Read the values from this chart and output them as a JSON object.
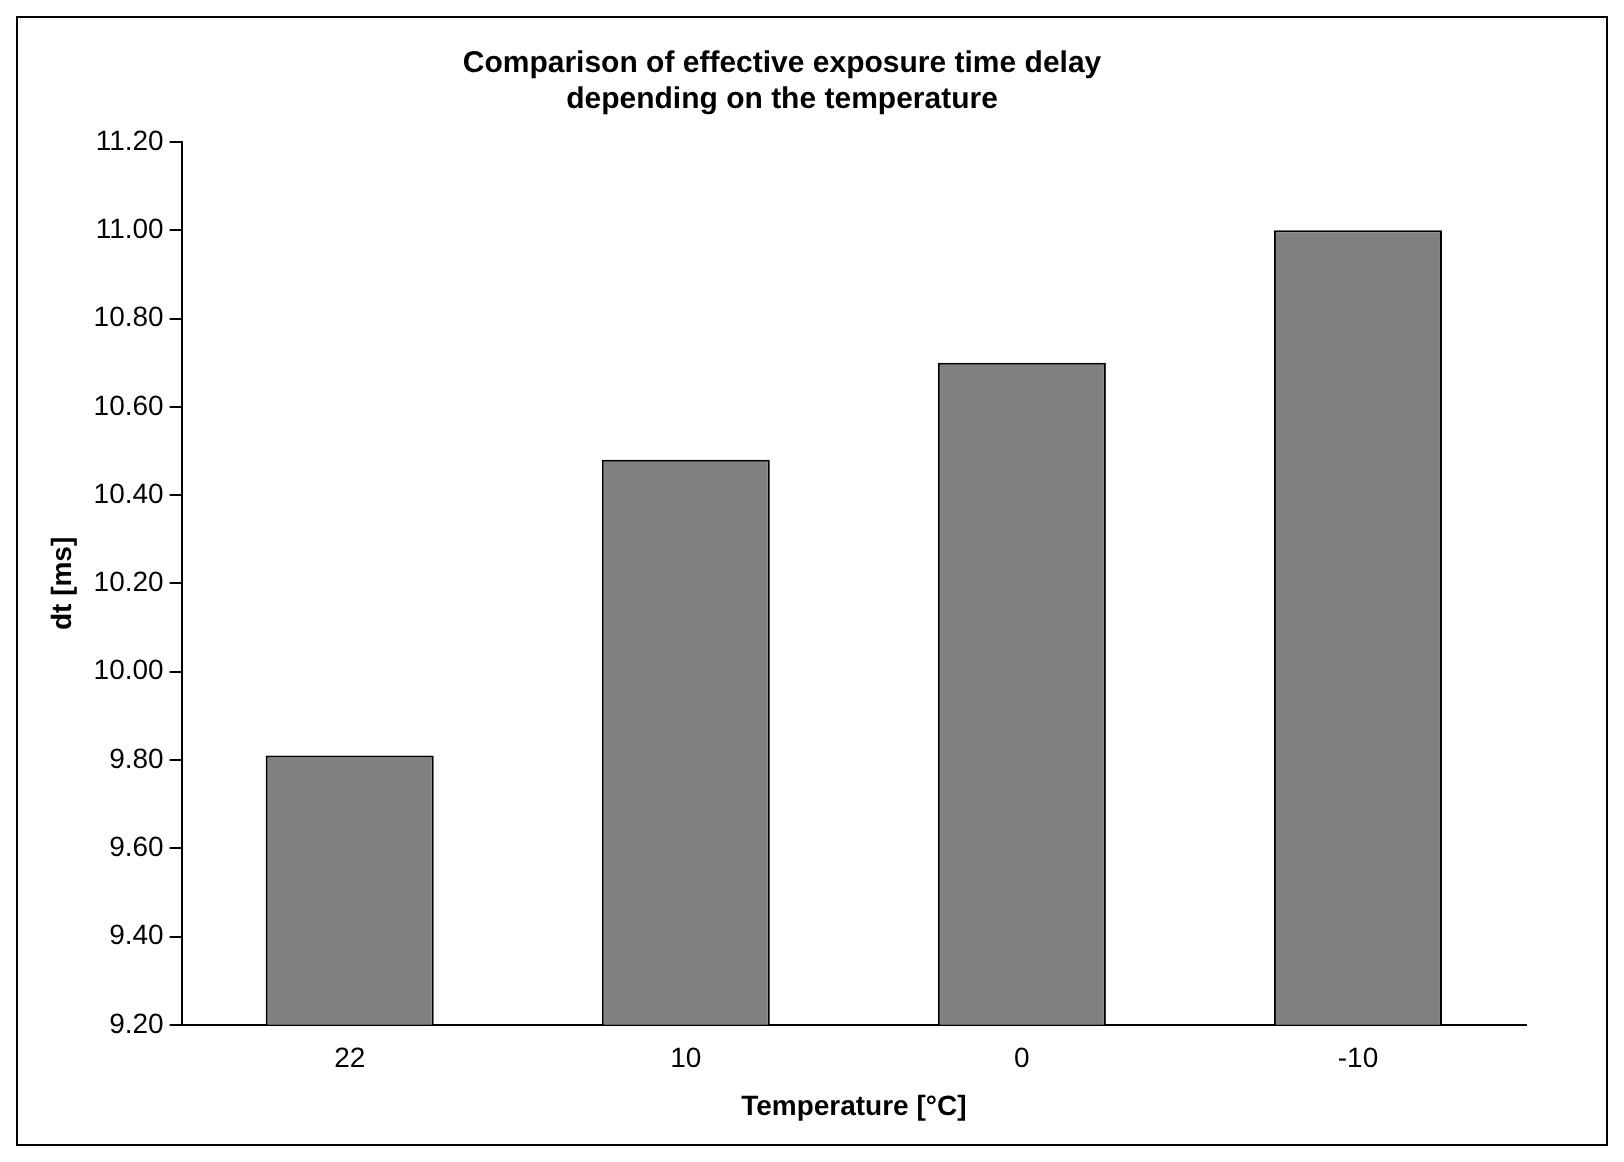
{
  "chart_data": {
    "type": "bar",
    "title": "Comparison of effective exposure time delay\ndepending on the temperature",
    "xlabel": "Temperature [°C]",
    "ylabel": "dt [ms]",
    "categories": [
      "22",
      "10",
      "0",
      "-10"
    ],
    "values": [
      9.81,
      10.48,
      10.7,
      11.0
    ],
    "color": "#808080",
    "ylim": [
      9.2,
      11.2
    ],
    "yticks": [
      {
        "value": 9.2,
        "label": "9.20"
      },
      {
        "value": 9.4,
        "label": "9.40"
      },
      {
        "value": 9.6,
        "label": "9.60"
      },
      {
        "value": 9.8,
        "label": "9.80"
      },
      {
        "value": 10.0,
        "label": "10.00"
      },
      {
        "value": 10.2,
        "label": "10.20"
      },
      {
        "value": 10.4,
        "label": "10.40"
      },
      {
        "value": 10.6,
        "label": "10.60"
      },
      {
        "value": 10.8,
        "label": "10.80"
      },
      {
        "value": 11.0,
        "label": "11.00"
      },
      {
        "value": 11.2,
        "label": "11.20"
      }
    ],
    "grid": false,
    "legend": false
  }
}
